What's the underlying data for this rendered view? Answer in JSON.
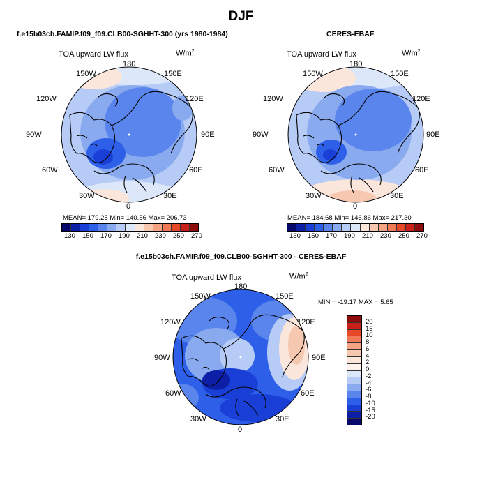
{
  "main_title": "DJF",
  "panels": [
    {
      "id": "model",
      "title": "f.e15b03ch.FAMIP.f09_f09.CLB00-SGHHT-300 (yrs 1980-1984)",
      "left_label": "TOA upward LW flux",
      "units": "W/m",
      "units_sup": "2",
      "stats_text": "MEAN= 179.25   Min= 140.56   Max= 206.73"
    },
    {
      "id": "obs",
      "title": "CERES-EBAF",
      "left_label": "TOA upward LW flux",
      "units": "W/m",
      "units_sup": "2",
      "stats_text": "MEAN= 184.68   Min= 146.86   Max= 217.30"
    },
    {
      "id": "diff",
      "title": "f.e15b03ch.FAMIP.f09_f09.CLB00-SGHHT-300 - CERES-EBAF",
      "left_label": "TOA upward LW flux",
      "units": "W/m",
      "units_sup": "2",
      "stats_text": "MIN = -19.17 MAX =   5.65"
    }
  ],
  "lon_labels": [
    "180",
    "150E",
    "120E",
    "90E",
    "60E",
    "30E",
    "0",
    "30W",
    "60W",
    "90W",
    "120W",
    "150W"
  ],
  "colorbar_abs": {
    "labels": [
      "130",
      "150",
      "170",
      "190",
      "210",
      "230",
      "250",
      "270"
    ],
    "colors": [
      "#08086b",
      "#0c1fa6",
      "#1a3fd6",
      "#2d5fe8",
      "#5a85ec",
      "#8aaaf0",
      "#b6cbf5",
      "#dce8fa",
      "#fbe6dc",
      "#f7c8b0",
      "#f4a483",
      "#ef7a55",
      "#e5492a",
      "#c9201a",
      "#8e0c0c"
    ]
  },
  "colorbar_diff": {
    "labels": [
      "20",
      "15",
      "10",
      "8",
      "6",
      "4",
      "2",
      "0",
      "-2",
      "-4",
      "-6",
      "-8",
      "-10",
      "-15",
      "-20"
    ],
    "colors": [
      "#8e0c0c",
      "#c9201a",
      "#e5492a",
      "#ef7a55",
      "#f4a483",
      "#f7c8b0",
      "#fbe6dc",
      "#fdf3ec",
      "#dce8fa",
      "#b6cbf5",
      "#8aaaf0",
      "#5a85ec",
      "#2d5fe8",
      "#1a3fd6",
      "#0c1fa6",
      "#08086b"
    ]
  }
}
